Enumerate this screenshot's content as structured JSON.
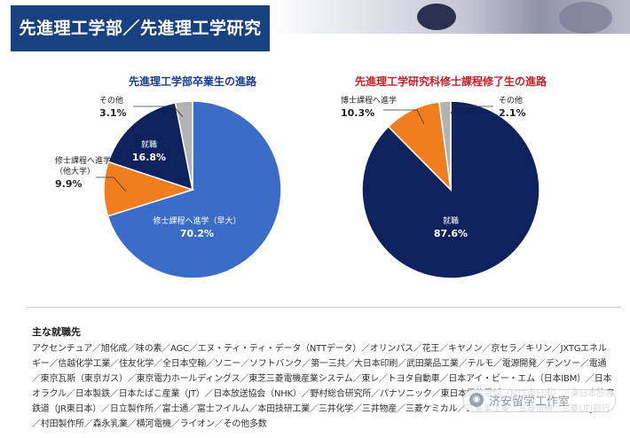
{
  "banner": {
    "title": "先進理工学部／先進理工学研究科"
  },
  "chart_data": [
    {
      "type": "pie",
      "title": "先進理工学部卒業生の進路",
      "title_color": "#1a3d8f",
      "slices": [
        {
          "label": "修士課程へ進学（早大）",
          "value": 70.2,
          "display": "70.2%",
          "color": "#3b6cc7"
        },
        {
          "label": "修士課程へ進学\n（他大学）",
          "value": 9.9,
          "display": "9.9%",
          "color": "#f07d1e"
        },
        {
          "label": "就職",
          "value": 16.8,
          "display": "16.8%",
          "color": "#10225d"
        },
        {
          "label": "その他",
          "value": 3.1,
          "display": "3.1%",
          "color": "#b3b3b3"
        }
      ]
    },
    {
      "type": "pie",
      "title": "先進理工学研究科修士課程修了生の進路",
      "title_color": "#c41e2b",
      "slices": [
        {
          "label": "就職",
          "value": 87.6,
          "display": "87.6%",
          "color": "#10225d"
        },
        {
          "label": "博士課程へ進学",
          "value": 10.3,
          "display": "10.3%",
          "color": "#f07d1e"
        },
        {
          "label": "その他",
          "value": 2.1,
          "display": "2.1%",
          "color": "#b3b3b3"
        }
      ]
    }
  ],
  "jobs": {
    "heading": "主な就職先",
    "text": "アクセンチュア／旭化成／味の素／AGC／エヌ・ティ・ティ・データ（NTTデータ）／オリンパス／花王／キヤノン／京セラ／キリン／JXTGエネルギー／信越化学工業／住友化学／全日本空輸／ソニー／ソフトバンク／第一三共／大日本印刷／武田薬品工業／テルモ／電源開発／デンソー／電通／東京瓦斯（東京ガス）／東京電力ホールディングス／東芝三菱電機産業システム／東レ／トヨタ自動車／日本アイ・ビー・エム（日本IBM）／日本オラクル／日本製鉄／日本たばこ産業（JT）／日本放送協会（NHK）／野村総合研究所／パナソニック／東日本電信電話（NTT東日本）／東日本旅客鉄道（JR東日本）／日立製作所／富士通／富士フイルム／本田技研工業／三井化学／三井物産／三菱ケミカル／三菱重工業／三菱電機／三菱UFJ銀行／村田製作所／森永乳業／横河電機／ライオン／その他多数"
  },
  "watermark": {
    "text": "济安留学工作室"
  }
}
